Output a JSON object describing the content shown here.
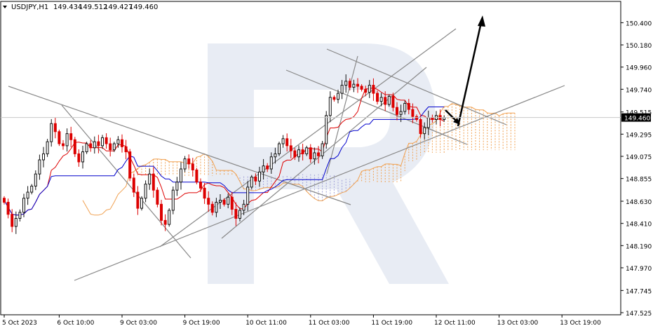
{
  "header": {
    "symbol": "USDJPY,H1",
    "open": "149.434",
    "high": "149.512",
    "low": "149.427",
    "close": "149.460"
  },
  "colors": {
    "bull": "#111111",
    "bear": "#dd0000",
    "tenkan": "#dd0000",
    "kijun": "#0000cc",
    "cloud_up": "#f0a050",
    "cloud_down": "#a0a0d8",
    "trendline": "#888888",
    "forecast_arrow": "#000000",
    "price_tag_bg": "#000000",
    "price_tag_text": "#ffffff"
  },
  "chart_data": {
    "type": "candlestick",
    "title": "",
    "ylim": [
      147.525,
      150.5
    ],
    "price_axis_ticks": [
      "150.400",
      "150.180",
      "149.960",
      "149.740",
      "149.515",
      "149.295",
      "149.075",
      "148.855",
      "148.630",
      "148.410",
      "148.190",
      "147.970",
      "147.745",
      "147.525"
    ],
    "time_axis_labels": [
      {
        "label": "5 Oct 2023",
        "bar": 0
      },
      {
        "label": "6 Oct 10:00",
        "bar": 14
      },
      {
        "label": "9 Oct 03:00",
        "bar": 30
      },
      {
        "label": "9 Oct 19:00",
        "bar": 46
      },
      {
        "label": "10 Oct 11:00",
        "bar": 62
      },
      {
        "label": "11 Oct 03:00",
        "bar": 78
      },
      {
        "label": "11 Oct 19:00",
        "bar": 94
      },
      {
        "label": "12 Oct 11:00",
        "bar": 110
      },
      {
        "label": "13 Oct 03:00",
        "bar": 126
      },
      {
        "label": "13 Oct 19:00",
        "bar": 142
      }
    ],
    "current_price": "149.460",
    "close": [
      148.62,
      148.5,
      148.38,
      148.46,
      148.52,
      148.66,
      148.72,
      148.78,
      148.9,
      149.04,
      149.1,
      149.22,
      149.4,
      149.32,
      149.2,
      149.18,
      149.3,
      149.24,
      149.1,
      149.02,
      149.12,
      149.2,
      149.16,
      149.22,
      149.18,
      149.26,
      149.2,
      149.14,
      149.2,
      149.24,
      149.17,
      149.12,
      148.86,
      148.72,
      148.56,
      148.66,
      148.8,
      148.9,
      148.74,
      148.6,
      148.44,
      148.4,
      148.54,
      148.74,
      148.82,
      148.95,
      149.05,
      149.0,
      148.94,
      148.82,
      148.76,
      148.66,
      148.6,
      148.52,
      148.62,
      148.64,
      148.6,
      148.67,
      148.55,
      148.46,
      148.54,
      148.6,
      148.77,
      148.87,
      148.83,
      148.92,
      148.98,
      148.95,
      149.07,
      149.1,
      149.2,
      149.25,
      149.18,
      149.13,
      149.07,
      149.14,
      149.1,
      149.16,
      149.05,
      149.11,
      149.08,
      149.2,
      149.48,
      149.66,
      149.64,
      149.7,
      149.78,
      149.82,
      149.76,
      149.79,
      149.77,
      149.74,
      149.71,
      149.78,
      149.7,
      149.62,
      149.66,
      149.59,
      149.67,
      149.56,
      149.49,
      149.52,
      149.6,
      149.54,
      149.47,
      149.44,
      149.3,
      149.36,
      149.46,
      149.44,
      149.48,
      149.44,
      149.46
    ]
  }
}
